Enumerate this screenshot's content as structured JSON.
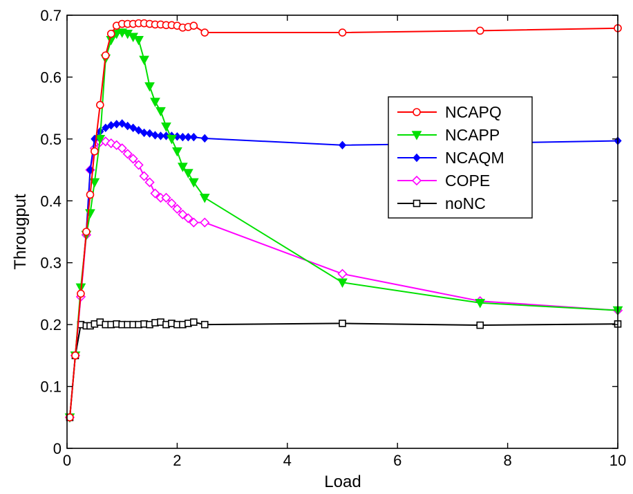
{
  "chart_data": {
    "type": "line",
    "xlabel": "Load",
    "ylabel": "Througput",
    "xlim": [
      0,
      10
    ],
    "ylim": [
      0,
      0.7
    ],
    "xticks": [
      0,
      2,
      4,
      6,
      8,
      10
    ],
    "yticks": [
      0,
      0.1,
      0.2,
      0.3,
      0.4,
      0.5,
      0.6,
      0.7
    ],
    "xtick_labels": [
      "0",
      "2",
      "4",
      "6",
      "8",
      "10"
    ],
    "ytick_labels": [
      "0",
      "0.1",
      "0.2",
      "0.3",
      "0.4",
      "0.5",
      "0.6",
      "0.7"
    ],
    "grid": false,
    "legend_position": "center-right",
    "series": [
      {
        "name": "NCAPQ",
        "color": "#ff0000",
        "marker": "circle-open",
        "x": [
          0.05,
          0.15,
          0.25,
          0.35,
          0.42,
          0.5,
          0.6,
          0.7,
          0.8,
          0.9,
          1.0,
          1.1,
          1.2,
          1.3,
          1.4,
          1.5,
          1.6,
          1.7,
          1.8,
          1.9,
          2.0,
          2.1,
          2.2,
          2.3,
          2.5,
          5,
          7.5,
          10
        ],
        "y": [
          0.05,
          0.15,
          0.25,
          0.35,
          0.41,
          0.48,
          0.555,
          0.635,
          0.67,
          0.683,
          0.686,
          0.686,
          0.686,
          0.687,
          0.687,
          0.686,
          0.685,
          0.685,
          0.684,
          0.684,
          0.683,
          0.68,
          0.681,
          0.683,
          0.672,
          0.672,
          0.675,
          0.679
        ]
      },
      {
        "name": "NCAPP",
        "color": "#00e000",
        "marker": "triangle-down-filled",
        "x": [
          0.05,
          0.15,
          0.25,
          0.35,
          0.42,
          0.5,
          0.6,
          0.7,
          0.8,
          0.9,
          1.0,
          1.1,
          1.2,
          1.3,
          1.4,
          1.5,
          1.6,
          1.7,
          1.8,
          1.9,
          2.0,
          2.1,
          2.2,
          2.3,
          2.5,
          5,
          7.5,
          10
        ],
        "y": [
          0.05,
          0.15,
          0.26,
          0.345,
          0.38,
          0.43,
          0.5,
          0.63,
          0.66,
          0.67,
          0.672,
          0.67,
          0.665,
          0.66,
          0.628,
          0.585,
          0.56,
          0.545,
          0.52,
          0.5,
          0.48,
          0.455,
          0.445,
          0.43,
          0.405,
          0.268,
          0.235,
          0.223
        ]
      },
      {
        "name": "NCAQM",
        "color": "#0000ff",
        "marker": "diamond-filled",
        "x": [
          0.05,
          0.15,
          0.25,
          0.35,
          0.42,
          0.5,
          0.6,
          0.7,
          0.8,
          0.9,
          1.0,
          1.1,
          1.2,
          1.3,
          1.4,
          1.5,
          1.6,
          1.7,
          1.8,
          1.9,
          2.0,
          2.1,
          2.2,
          2.3,
          2.5,
          5,
          7.5,
          10
        ],
        "y": [
          0.05,
          0.15,
          0.25,
          0.35,
          0.45,
          0.5,
          0.512,
          0.518,
          0.522,
          0.524,
          0.525,
          0.521,
          0.518,
          0.514,
          0.51,
          0.509,
          0.506,
          0.505,
          0.505,
          0.505,
          0.504,
          0.503,
          0.503,
          0.503,
          0.501,
          0.49,
          0.493,
          0.497
        ]
      },
      {
        "name": "COPE",
        "color": "#ff00ff",
        "marker": "diamond-open",
        "x": [
          0.05,
          0.15,
          0.25,
          0.35,
          0.42,
          0.5,
          0.6,
          0.7,
          0.8,
          0.9,
          1.0,
          1.1,
          1.2,
          1.3,
          1.4,
          1.5,
          1.6,
          1.7,
          1.8,
          1.9,
          2.0,
          2.1,
          2.2,
          2.3,
          2.5,
          5,
          7.5,
          10
        ],
        "y": [
          0.05,
          0.15,
          0.245,
          0.345,
          0.45,
          0.485,
          0.495,
          0.496,
          0.493,
          0.49,
          0.485,
          0.476,
          0.468,
          0.458,
          0.44,
          0.43,
          0.412,
          0.405,
          0.405,
          0.396,
          0.387,
          0.378,
          0.372,
          0.365,
          0.365,
          0.282,
          0.238,
          0.223
        ]
      },
      {
        "name": "noNC",
        "color": "#000000",
        "marker": "square-open",
        "x": [
          0.05,
          0.15,
          0.25,
          0.35,
          0.42,
          0.5,
          0.6,
          0.7,
          0.8,
          0.9,
          1.0,
          1.1,
          1.2,
          1.3,
          1.4,
          1.5,
          1.6,
          1.7,
          1.8,
          1.9,
          2.0,
          2.1,
          2.2,
          2.3,
          2.5,
          5,
          7.5,
          10
        ],
        "y": [
          0.05,
          0.15,
          0.2,
          0.198,
          0.198,
          0.201,
          0.204,
          0.2,
          0.2,
          0.201,
          0.2,
          0.2,
          0.2,
          0.2,
          0.201,
          0.2,
          0.203,
          0.204,
          0.2,
          0.202,
          0.2,
          0.2,
          0.202,
          0.204,
          0.2,
          0.202,
          0.199,
          0.201
        ]
      }
    ]
  }
}
